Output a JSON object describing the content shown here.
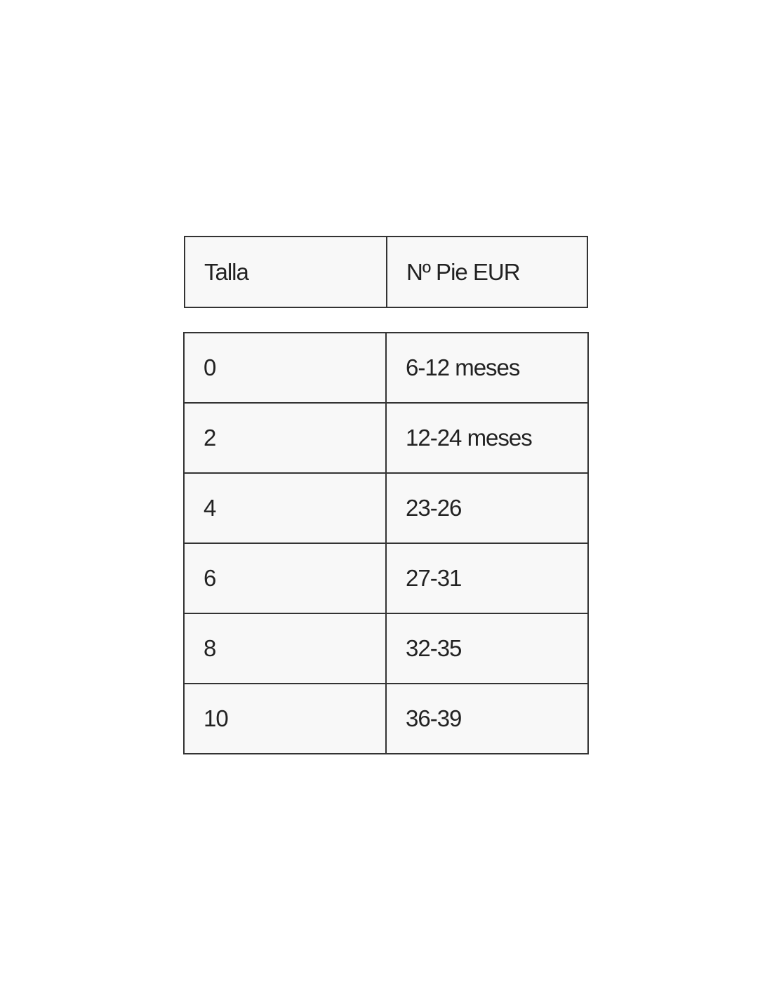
{
  "header": [
    "Talla",
    "Nº Pie EUR"
  ],
  "rows": [
    [
      "0",
      "6-12 meses"
    ],
    [
      "2",
      "12-24 meses"
    ],
    [
      "4",
      "23-26"
    ],
    [
      "6",
      "27-31"
    ],
    [
      "8",
      "32-35"
    ],
    [
      "10",
      "36-39"
    ]
  ]
}
